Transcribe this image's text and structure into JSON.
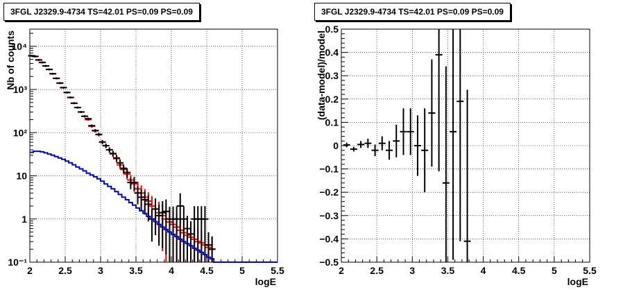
{
  "chart_data": [
    {
      "type": "scatter",
      "title": "3FGL J2329.9-4734 TS=42.01 PS=0.09 PS=0.09",
      "xlabel": "logE",
      "ylabel": "Nb of counts",
      "xlim": [
        2,
        5.5
      ],
      "ylim": [
        0.1,
        25000
      ],
      "yscale": "log",
      "grid": true,
      "x_ticks": [
        "2",
        "2.5",
        "3",
        "3.5",
        "4",
        "4.5",
        "5",
        "5.5"
      ],
      "y_ticks": [
        {
          "value": 0.1,
          "label": "10⁻¹"
        },
        {
          "value": 1,
          "label": "1"
        },
        {
          "value": 10,
          "label": "10"
        },
        {
          "value": 100,
          "label": "10²"
        },
        {
          "value": 1000,
          "label": "10³"
        },
        {
          "value": 10000,
          "label": "10⁴"
        }
      ],
      "series": [
        {
          "color": "#ff0000",
          "style": "errorbar",
          "x": [
            2.025,
            2.075,
            2.125,
            2.175,
            2.225,
            2.275,
            2.325,
            2.375,
            2.425,
            2.475,
            2.525,
            2.575,
            2.625,
            2.675,
            2.725,
            2.775,
            2.825,
            2.875,
            2.925,
            2.975,
            3.025,
            3.075,
            3.125,
            3.175,
            3.225,
            3.275,
            3.325,
            3.375,
            3.425,
            3.475,
            3.525,
            3.575,
            3.625,
            3.675,
            3.725,
            3.775,
            3.825,
            3.875,
            3.925,
            3.975,
            4.025,
            4.075,
            4.125,
            4.175,
            4.225,
            4.275,
            4.325,
            4.375,
            4.425,
            4.475,
            4.525,
            4.575
          ],
          "y": [
            6000,
            5800,
            4800,
            4200,
            3500,
            2900,
            2300,
            1800,
            1400,
            1100,
            850,
            650,
            480,
            380,
            300,
            240,
            200,
            140,
            110,
            90,
            60,
            50,
            40,
            32,
            25,
            18,
            14,
            11,
            8,
            6.5,
            5,
            4,
            3.2,
            2.6,
            2,
            1.7,
            1.4,
            1.2,
            1,
            0.85,
            0.75,
            0.65,
            0.55,
            0.48,
            0.42,
            0.38,
            0.34,
            0.3,
            0.28,
            0.25,
            0.22,
            0.2
          ],
          "err": [
            0.05,
            0.05,
            0.05,
            0.05,
            0.05,
            0.05,
            0.05,
            0.05,
            0.05,
            0.05,
            0.05,
            0.05,
            0.05,
            0.05,
            0.05,
            0.06,
            0.06,
            0.07,
            0.08,
            0.09,
            0.11,
            0.12,
            0.14,
            0.15,
            0.18,
            0.2,
            0.22,
            0.25,
            0.3,
            0.35,
            0.45,
            0.5,
            0.55,
            0.6,
            0.7,
            0.75,
            0.8,
            0.85,
            0.9,
            0.92,
            0.95,
            0.96,
            0.97,
            0.98,
            0.98,
            0.98,
            0.98,
            0.98,
            0.98,
            0.98,
            0.98,
            0.98
          ]
        },
        {
          "color": "#000000",
          "style": "errorbar",
          "x": [
            2.025,
            2.075,
            2.125,
            2.175,
            2.225,
            2.275,
            2.325,
            2.375,
            2.425,
            2.475,
            2.525,
            2.575,
            2.625,
            2.675,
            2.725,
            2.775,
            2.825,
            2.875,
            2.925,
            2.975,
            3.025,
            3.075,
            3.125,
            3.175,
            3.225,
            3.275,
            3.325,
            3.375,
            3.425,
            3.475,
            3.525,
            3.575,
            3.625,
            3.675,
            3.725,
            3.775,
            3.825,
            3.875,
            3.925,
            3.975,
            4.025,
            4.075,
            4.125,
            4.175,
            4.225,
            4.275,
            4.325,
            4.375,
            4.425,
            4.475,
            4.525,
            4.575
          ],
          "y": [
            6050,
            5850,
            4850,
            4250,
            3520,
            2920,
            2320,
            1820,
            1410,
            1105,
            855,
            655,
            482,
            382,
            302,
            240,
            210,
            145,
            112,
            91,
            61,
            50,
            40,
            33,
            26,
            20,
            15,
            12,
            7,
            7,
            4,
            3.2,
            2.8,
            2.2,
            1,
            1.7,
            1.2,
            1.4,
            1.5,
            1,
            1,
            1,
            2,
            1,
            0.6,
            0.45,
            1,
            1,
            1,
            1,
            0.25,
            0.2
          ],
          "err": [
            0.05,
            0.05,
            0.05,
            0.05,
            0.05,
            0.05,
            0.05,
            0.05,
            0.05,
            0.05,
            0.05,
            0.05,
            0.05,
            0.05,
            0.05,
            0.06,
            0.06,
            0.07,
            0.08,
            0.09,
            0.11,
            0.12,
            0.14,
            0.15,
            0.18,
            0.2,
            0.22,
            0.25,
            0.3,
            0.35,
            0.45,
            0.5,
            0.55,
            0.6,
            0.7,
            0.75,
            0.8,
            0.85,
            0.9,
            0.92,
            0.95,
            0.96,
            0.97,
            0.98,
            0.98,
            0.98,
            0.98,
            0.98,
            0.98,
            0.98,
            0.98,
            0.98
          ]
        },
        {
          "color": "#0000cc",
          "style": "step",
          "x": [
            2.0,
            2.05,
            2.1,
            2.15,
            2.2,
            2.25,
            2.3,
            2.35,
            2.4,
            2.45,
            2.5,
            2.55,
            2.6,
            2.65,
            2.7,
            2.75,
            2.8,
            2.85,
            2.9,
            2.95,
            3.0,
            3.05,
            3.1,
            3.15,
            3.2,
            3.25,
            3.3,
            3.35,
            3.4,
            3.45,
            3.5,
            3.55,
            3.6,
            3.65,
            3.7,
            3.75,
            3.8,
            3.85,
            3.9,
            3.95,
            4.0,
            4.05,
            4.1,
            4.15,
            4.2,
            4.25,
            4.3,
            4.35,
            4.4,
            4.45,
            4.5,
            4.55,
            4.6,
            5.5
          ],
          "y": [
            35,
            37,
            37,
            36,
            34,
            32,
            30,
            28,
            26,
            24,
            22,
            20,
            18,
            16,
            14.5,
            13,
            11.5,
            10.5,
            9.5,
            8.5,
            7.5,
            6.5,
            5.7,
            5,
            4.3,
            3.7,
            3.2,
            2.8,
            2.4,
            2.1,
            1.8,
            1.55,
            1.35,
            1.15,
            1.0,
            0.87,
            0.75,
            0.65,
            0.57,
            0.5,
            0.44,
            0.39,
            0.34,
            0.3,
            0.27,
            0.24,
            0.21,
            0.19,
            0.17,
            0.15,
            0.13,
            0.12,
            0.1,
            0.1
          ]
        }
      ]
    },
    {
      "type": "scatter",
      "title": "3FGL J2329.9-4734 TS=42.01 PS=0.09 PS=0.09",
      "xlabel": "logE",
      "ylabel": "(data-model)/model",
      "xlim": [
        2,
        5.5
      ],
      "ylim": [
        -0.5,
        0.5
      ],
      "grid": true,
      "x_ticks": [
        "2",
        "2.5",
        "3",
        "3.5",
        "4",
        "4.5",
        "5",
        "5.5"
      ],
      "y_ticks": [
        "−0.5",
        "−0.4",
        "−0.3",
        "−0.2",
        "−0.1",
        "0",
        "0.1",
        "0.2",
        "0.3",
        "0.4",
        "0.5"
      ],
      "series": [
        {
          "color": "#000000",
          "style": "errorbar",
          "x": [
            2.075,
            2.175,
            2.275,
            2.375,
            2.475,
            2.575,
            2.675,
            2.775,
            2.875,
            2.975,
            3.075,
            3.175,
            3.275,
            3.375,
            3.475,
            3.575,
            3.675,
            3.775
          ],
          "y": [
            0.003,
            -0.015,
            0.005,
            0.01,
            -0.02,
            0.01,
            -0.02,
            0.02,
            0.06,
            0.06,
            0.0,
            -0.02,
            0.14,
            0.39,
            -0.16,
            0.06,
            0.19,
            -0.41
          ],
          "err": [
            0.01,
            0.01,
            0.015,
            0.02,
            0.025,
            0.03,
            0.04,
            0.07,
            0.1,
            0.1,
            0.13,
            0.18,
            0.23,
            0.5,
            0.5,
            0.55,
            0.6,
            0.65
          ]
        }
      ]
    }
  ]
}
